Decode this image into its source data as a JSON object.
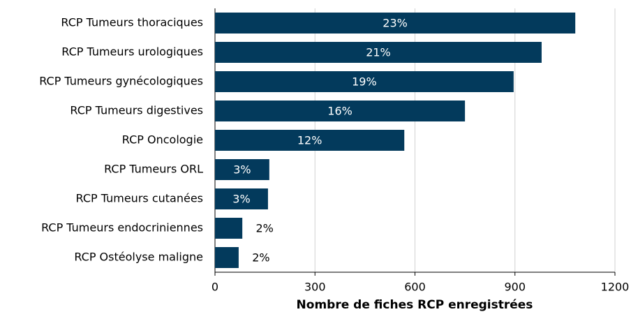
{
  "chart_data": {
    "type": "barh",
    "categories": [
      "RCP Tumeurs thoraciques",
      "RCP Tumeurs urologiques",
      "RCP Tumeurs gynécologiques",
      "RCP Tumeurs digestives",
      "RCP Oncologie",
      "RCP Tumeurs ORL",
      "RCP Tumeurs cutanées",
      "RCP Tumeurs endocriniennes",
      "RCP Ostéolyse maligne"
    ],
    "values": [
      1081,
      980,
      896,
      750,
      568,
      163,
      159,
      82,
      71
    ],
    "percent_labels": [
      "23%",
      "21%",
      "19%",
      "16%",
      "12%",
      "3%",
      "3%",
      "2%",
      "2%"
    ],
    "color": "#033a5c",
    "xlabel": "Nombre de fiches RCP enregistrées",
    "xlim": [
      0,
      1200
    ],
    "xticks": [
      0,
      300,
      600,
      900,
      1200
    ],
    "grid": true
  }
}
